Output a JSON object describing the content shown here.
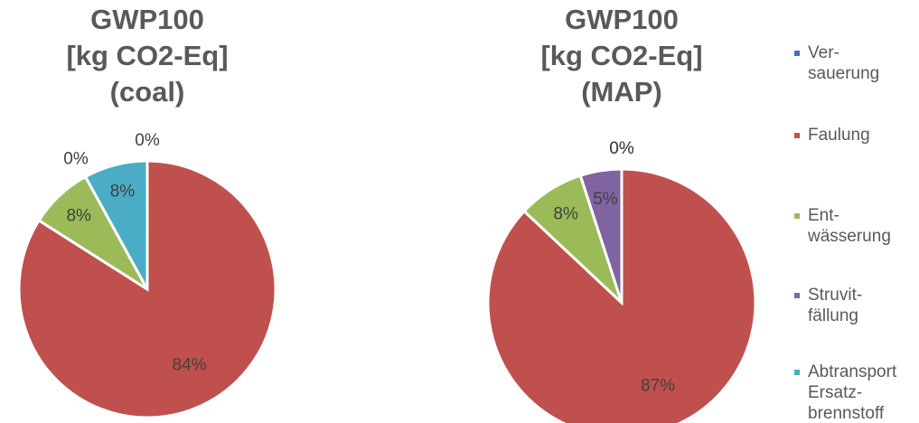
{
  "legend": {
    "names": [
      "Ver-\nsauerung",
      "Faulung",
      "Ent-\nwässerung",
      "Struvit-\nfällung",
      "Abtransport\nErsatz-\nbrennstoff"
    ],
    "colors": [
      "#4472c4",
      "#c0504d",
      "#9bbb59",
      "#8064a2",
      "#4bacc6"
    ]
  },
  "chart_data": [
    {
      "type": "pie",
      "title": "GWP100\n[kg CO2-Eq]\n(coal)",
      "values": [
        0,
        84,
        8,
        0,
        8
      ]
    },
    {
      "type": "pie",
      "title": "GWP100\n[kg CO2-Eq]\n(MAP)",
      "values": [
        0,
        87,
        8,
        5,
        0
      ]
    }
  ]
}
